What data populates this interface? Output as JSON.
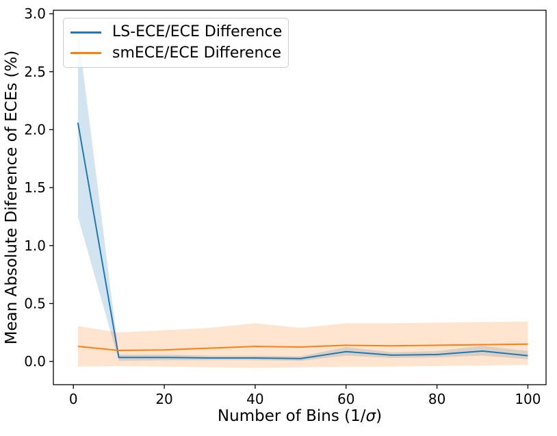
{
  "figure": {
    "background": "#ffffff",
    "spine_color": "#000000"
  },
  "chart_data": {
    "type": "line",
    "title": "",
    "xlabel": "Number of Bins (1/σ)",
    "ylabel": "Mean Absolute Diference of ECEs (%)",
    "xlim": [
      -4.4,
      104
    ],
    "ylim": [
      -0.2,
      3.03
    ],
    "grid": false,
    "legend": {
      "position": "upper left"
    },
    "xticks": {
      "values": [
        0,
        20,
        40,
        60,
        80,
        100
      ],
      "labels": [
        "0",
        "20",
        "40",
        "60",
        "80",
        "100"
      ]
    },
    "yticks": {
      "values": [
        0.0,
        0.5,
        1.0,
        1.5,
        2.0,
        2.5,
        3.0
      ],
      "labels": [
        "0.0",
        "0.5",
        "1.0",
        "1.5",
        "2.0",
        "2.5",
        "3.0"
      ]
    },
    "x": [
      1,
      10,
      20,
      30,
      40,
      50,
      60,
      70,
      80,
      90,
      100
    ],
    "series": [
      {
        "name": "LS-ECE/ECE Difference",
        "color": "#1f77b4",
        "band_alpha": 0.2,
        "values": [
          2.06,
          0.035,
          0.035,
          0.03,
          0.03,
          0.025,
          0.085,
          0.055,
          0.06,
          0.09,
          0.05
        ],
        "band_lower": [
          1.25,
          0.005,
          0.01,
          0.01,
          0.01,
          0.005,
          0.05,
          0.03,
          0.035,
          0.05,
          0.02
        ],
        "band_upper": [
          2.86,
          0.06,
          0.06,
          0.05,
          0.05,
          0.045,
          0.125,
          0.08,
          0.09,
          0.135,
          0.09
        ]
      },
      {
        "name": "smECE/ECE Difference",
        "color": "#ff7f0e",
        "band_alpha": 0.2,
        "values": [
          0.13,
          0.095,
          0.1,
          0.115,
          0.13,
          0.125,
          0.14,
          0.135,
          0.14,
          0.145,
          0.15
        ],
        "band_lower": [
          -0.045,
          -0.04,
          -0.045,
          -0.05,
          -0.055,
          -0.05,
          -0.045,
          -0.045,
          -0.04,
          -0.035,
          -0.03
        ],
        "band_upper": [
          0.305,
          0.25,
          0.27,
          0.29,
          0.33,
          0.29,
          0.33,
          0.33,
          0.335,
          0.34,
          0.345
        ]
      }
    ]
  }
}
